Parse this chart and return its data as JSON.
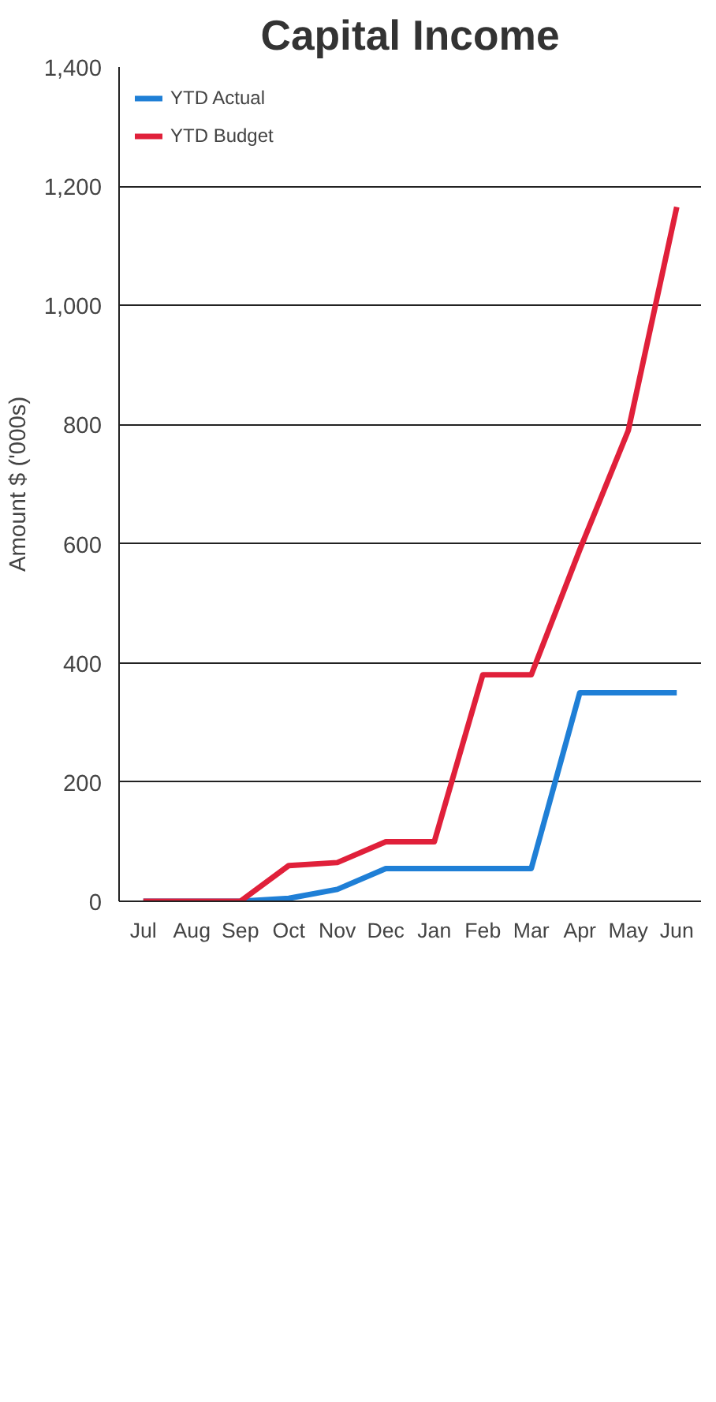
{
  "chart_data": {
    "type": "line",
    "title": "Capital Income",
    "ylabel": "Amount $ ('000s)",
    "categories": [
      "Jul",
      "Aug",
      "Sep",
      "Oct",
      "Nov",
      "Dec",
      "Jan",
      "Feb",
      "Mar",
      "Apr",
      "May",
      "Jun"
    ],
    "series": [
      {
        "name": "YTD Actual",
        "color": "#1f7fd6",
        "values": [
          0,
          0,
          0,
          5,
          20,
          55,
          55,
          55,
          55,
          350,
          350,
          350
        ]
      },
      {
        "name": "YTD Budget",
        "color": "#e0203a",
        "values": [
          0,
          0,
          0,
          60,
          65,
          100,
          100,
          380,
          380,
          590,
          790,
          1165
        ]
      }
    ],
    "ylim": [
      0,
      1400
    ],
    "yticks": [
      0,
      200,
      400,
      600,
      800,
      {
        "value": 1000,
        "label": "1,000"
      },
      {
        "value": 1200,
        "label": "1,200"
      },
      {
        "value": 1400,
        "label": "1,400"
      }
    ],
    "grid": "y",
    "legend": "top left",
    "marker": "none",
    "line_style": "solid"
  }
}
